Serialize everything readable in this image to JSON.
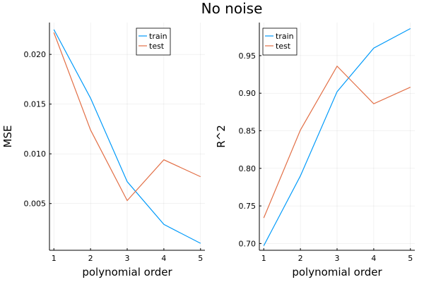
{
  "title": "No noise",
  "chart_data": [
    {
      "type": "line",
      "xlabel": "polynomial order",
      "ylabel": "MSE",
      "x": [
        1,
        2,
        3,
        4,
        5
      ],
      "xticks": [
        "1",
        "2",
        "3",
        "4",
        "5"
      ],
      "xlim": [
        0.88,
        5.12
      ],
      "ylim": [
        0.0003,
        0.0232
      ],
      "yticks": [
        0.005,
        0.01,
        0.015,
        0.02
      ],
      "ytick_labels": [
        "0.005",
        "0.010",
        "0.015",
        "0.020"
      ],
      "grid": true,
      "legend_position": "top-right",
      "series": [
        {
          "name": "train",
          "color": "#009AFA",
          "values": [
            0.0225,
            0.0156,
            0.0072,
            0.0029,
            0.001
          ]
        },
        {
          "name": "test",
          "color": "#E26F46",
          "values": [
            0.0222,
            0.0124,
            0.0053,
            0.0094,
            0.0077
          ]
        }
      ]
    },
    {
      "type": "line",
      "xlabel": "polynomial order",
      "ylabel": "R^2",
      "x": [
        1,
        2,
        3,
        4,
        5
      ],
      "xticks": [
        "1",
        "2",
        "3",
        "4",
        "5"
      ],
      "xlim": [
        0.88,
        5.12
      ],
      "ylim": [
        0.691,
        0.994
      ],
      "yticks": [
        0.7,
        0.75,
        0.8,
        0.85,
        0.9,
        0.95
      ],
      "ytick_labels": [
        "0.70",
        "0.75",
        "0.80",
        "0.85",
        "0.90",
        "0.95"
      ],
      "grid": true,
      "legend_position": "top-left",
      "series": [
        {
          "name": "train",
          "color": "#009AFA",
          "values": [
            0.697,
            0.79,
            0.902,
            0.96,
            0.986
          ]
        },
        {
          "name": "test",
          "color": "#E26F46",
          "values": [
            0.734,
            0.851,
            0.936,
            0.886,
            0.908
          ]
        }
      ]
    }
  ]
}
